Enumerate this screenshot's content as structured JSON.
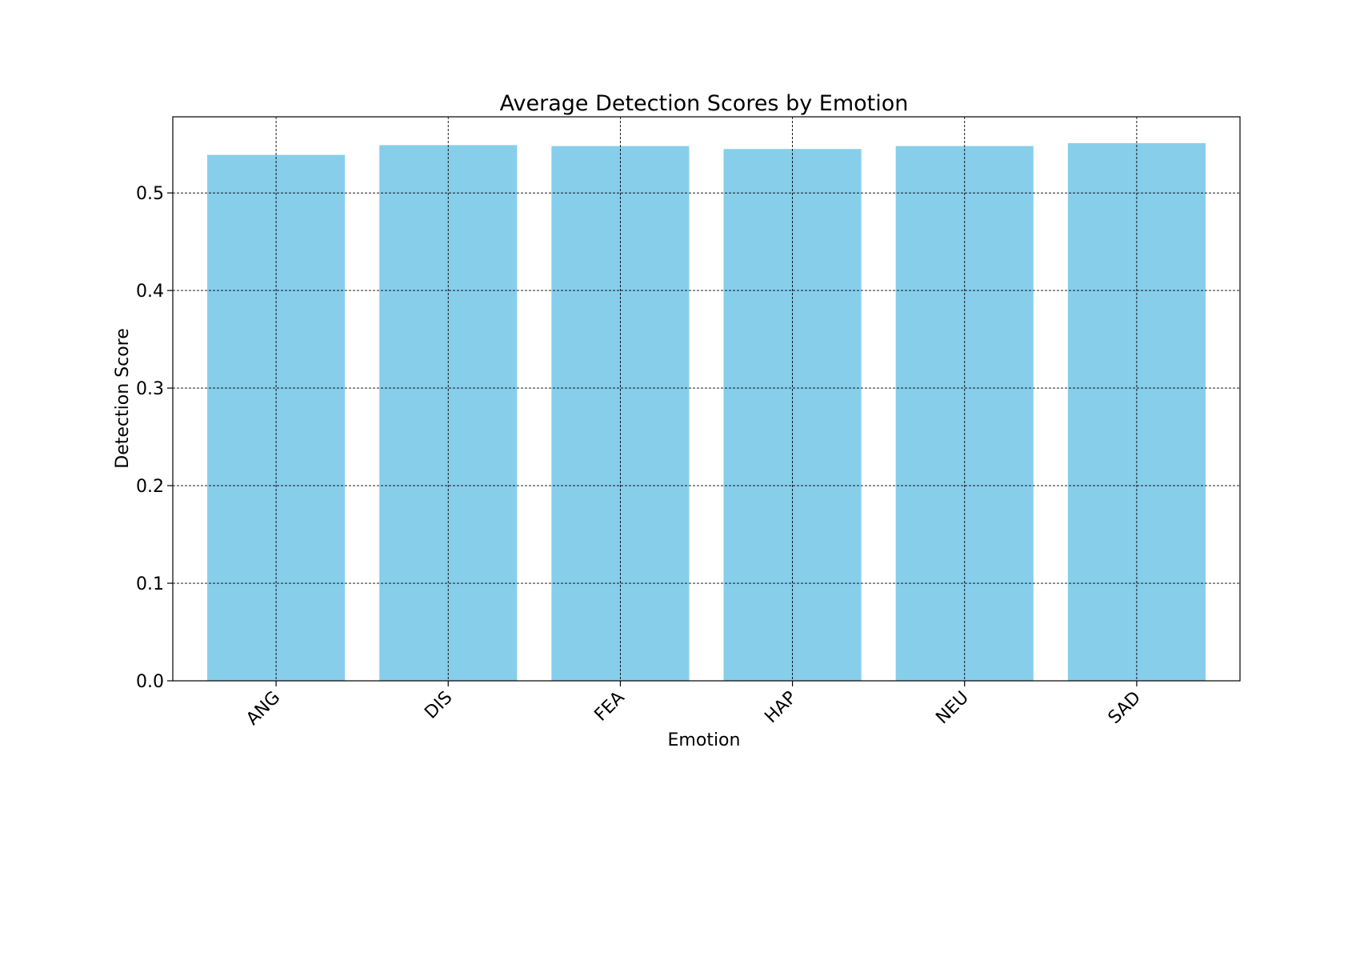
{
  "chart_data": {
    "type": "bar",
    "title": "Average Detection Scores by Emotion",
    "xlabel": "Emotion",
    "ylabel": "Detection Score",
    "categories": [
      "ANG",
      "DIS",
      "FEA",
      "HAP",
      "NEU",
      "SAD"
    ],
    "values": [
      0.539,
      0.549,
      0.548,
      0.545,
      0.548,
      0.551
    ],
    "ylim": [
      0,
      0.578
    ],
    "yticks": [
      0.0,
      0.1,
      0.2,
      0.3,
      0.4,
      0.5
    ],
    "ytick_labels": [
      "0.0",
      "0.1",
      "0.2",
      "0.3",
      "0.4",
      "0.5"
    ],
    "grid": true,
    "xtick_rotation": 45,
    "bar_color": "#87ceeb"
  }
}
